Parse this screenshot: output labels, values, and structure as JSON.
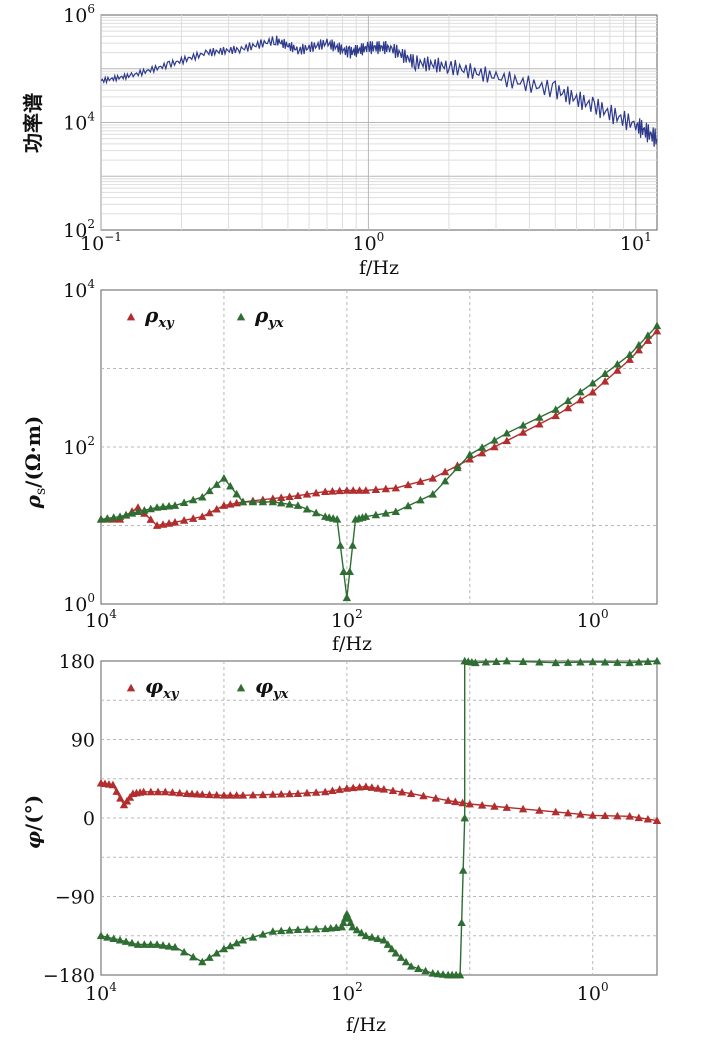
{
  "colors": {
    "red": "#b22d2d",
    "green": "#2e6e33",
    "power": "#2e3a8c",
    "grid_major": "#b8b8b8",
    "grid_minor": "#dedede",
    "frame": "#7a7a7a"
  },
  "chart_data": [
    {
      "type": "line",
      "ylabel": "功率谱",
      "xlabel": "f/Hz",
      "x_scale": "log",
      "y_scale": "log",
      "xlim": [
        0.1,
        12
      ],
      "ylim": [
        100,
        1000000
      ],
      "x_ticks": [
        {
          "value": 0.1,
          "base": "10",
          "exp": "−1"
        },
        {
          "value": 1,
          "base": "10",
          "exp": "0"
        },
        {
          "value": 10,
          "base": "10",
          "exp": "1"
        }
      ],
      "y_ticks": [
        {
          "value": 100,
          "base": "10",
          "exp": "2"
        },
        {
          "value": 10000,
          "base": "10",
          "exp": "4"
        },
        {
          "value": 1000000,
          "base": "10",
          "exp": "6"
        }
      ],
      "grid": "log-minor",
      "series": [
        {
          "color": "power",
          "x": [
            0.1,
            0.13,
            0.18,
            0.25,
            0.33,
            0.45,
            0.55,
            0.7,
            0.85,
            1.0,
            1.2,
            1.5,
            2.0,
            3.0,
            5.0,
            7.0,
            10.0,
            12.0
          ],
          "y": [
            60000,
            75000,
            120000,
            200000,
            230000,
            340000,
            220000,
            300000,
            200000,
            250000,
            250000,
            130000,
            110000,
            70000,
            40000,
            20000,
            9000,
            5000
          ]
        }
      ]
    },
    {
      "type": "scatter",
      "ylabel_base": "ρ",
      "ylabel_sub": "s",
      "ylabel_unit": "/(Ω·m)",
      "xlabel": "f/Hz",
      "x_scale": "log",
      "x_reversed": true,
      "y_scale": "log",
      "xlim": [
        10000,
        0.3
      ],
      "ylim": [
        1,
        10000
      ],
      "x_ticks": [
        {
          "value": 10000,
          "base": "10",
          "exp": "4"
        },
        {
          "value": 100,
          "base": "10",
          "exp": "2"
        },
        {
          "value": 1,
          "base": "10",
          "exp": "0"
        }
      ],
      "y_ticks": [
        {
          "value": 1,
          "base": "10",
          "exp": "0"
        },
        {
          "value": 100,
          "base": "10",
          "exp": "2"
        },
        {
          "value": 10000,
          "base": "10",
          "exp": "4"
        }
      ],
      "grid": "dashed",
      "legend": "top-left",
      "series": [
        {
          "name": "ρxy",
          "label_base": "ρ",
          "label_sub": "xy",
          "color": "red",
          "x": [
            10000,
            7000,
            5000,
            3500,
            2500,
            1500,
            1000,
            700,
            400,
            250,
            150,
            100,
            70,
            40,
            20,
            10,
            5,
            2,
            1,
            0.5,
            0.3
          ],
          "y": [
            12,
            12,
            17,
            10,
            11,
            13,
            18,
            20,
            22,
            24,
            27,
            28,
            28,
            30,
            40,
            70,
            120,
            250,
            500,
            1300,
            3000
          ]
        },
        {
          "name": "ρyx",
          "label_base": "ρ",
          "label_sub": "yx",
          "color": "green",
          "x": [
            10000,
            7000,
            5000,
            3500,
            2500,
            1500,
            1000,
            700,
            400,
            250,
            150,
            120,
            100,
            85,
            70,
            40,
            20,
            10,
            5,
            2,
            1,
            0.5,
            0.3
          ],
          "y": [
            12,
            13,
            15,
            17,
            18,
            23,
            40,
            20,
            20,
            18,
            13,
            12,
            1.2,
            12,
            13,
            15,
            25,
            80,
            150,
            300,
            650,
            1500,
            3500
          ]
        }
      ]
    },
    {
      "type": "scatter",
      "ylabel_base": "φ",
      "ylabel_unit": "/(°)",
      "xlabel": "f/Hz",
      "x_scale": "log",
      "x_reversed": true,
      "xlim": [
        10000,
        0.3
      ],
      "ylim": [
        -180,
        180
      ],
      "x_ticks": [
        {
          "value": 10000,
          "base": "10",
          "exp": "4"
        },
        {
          "value": 100,
          "base": "10",
          "exp": "2"
        },
        {
          "value": 1,
          "base": "10",
          "exp": "0"
        }
      ],
      "y_ticks": [
        {
          "value": 180,
          "label": "180"
        },
        {
          "value": 90,
          "label": "90"
        },
        {
          "value": 0,
          "label": "0"
        },
        {
          "value": -90,
          "label": "−90"
        },
        {
          "value": -180,
          "label": "−180"
        }
      ],
      "grid": "dashed",
      "legend": "top-left",
      "series": [
        {
          "name": "φxy",
          "label_base": "φ",
          "label_sub": "xy",
          "color": "red",
          "x": [
            10000,
            8000,
            6500,
            5500,
            4500,
            3000,
            2000,
            1500,
            1000,
            700,
            400,
            250,
            150,
            100,
            70,
            50,
            30,
            15,
            10,
            5,
            2,
            1,
            0.5,
            0.3
          ],
          "y": [
            40,
            38,
            15,
            28,
            30,
            30,
            28,
            27,
            26,
            26,
            27,
            28,
            30,
            34,
            36,
            33,
            28,
            20,
            16,
            12,
            7,
            3,
            2,
            -3
          ]
        },
        {
          "name": "φyx",
          "label_base": "φ",
          "label_sub": "yx",
          "color": "green",
          "x": [
            10000,
            7000,
            5000,
            3500,
            2500,
            1500,
            1000,
            700,
            400,
            250,
            150,
            110,
            100,
            90,
            70,
            50,
            40,
            30,
            20,
            15,
            12,
            11,
            11,
            9,
            5,
            2,
            1,
            0.5,
            0.3
          ],
          "y": [
            -135,
            -140,
            -145,
            -145,
            -148,
            -165,
            -150,
            -140,
            -130,
            -128,
            -127,
            -125,
            -110,
            -125,
            -135,
            -140,
            -155,
            -170,
            -178,
            -180,
            -180,
            0,
            180,
            178,
            180,
            178,
            179,
            178,
            180
          ]
        }
      ]
    }
  ]
}
